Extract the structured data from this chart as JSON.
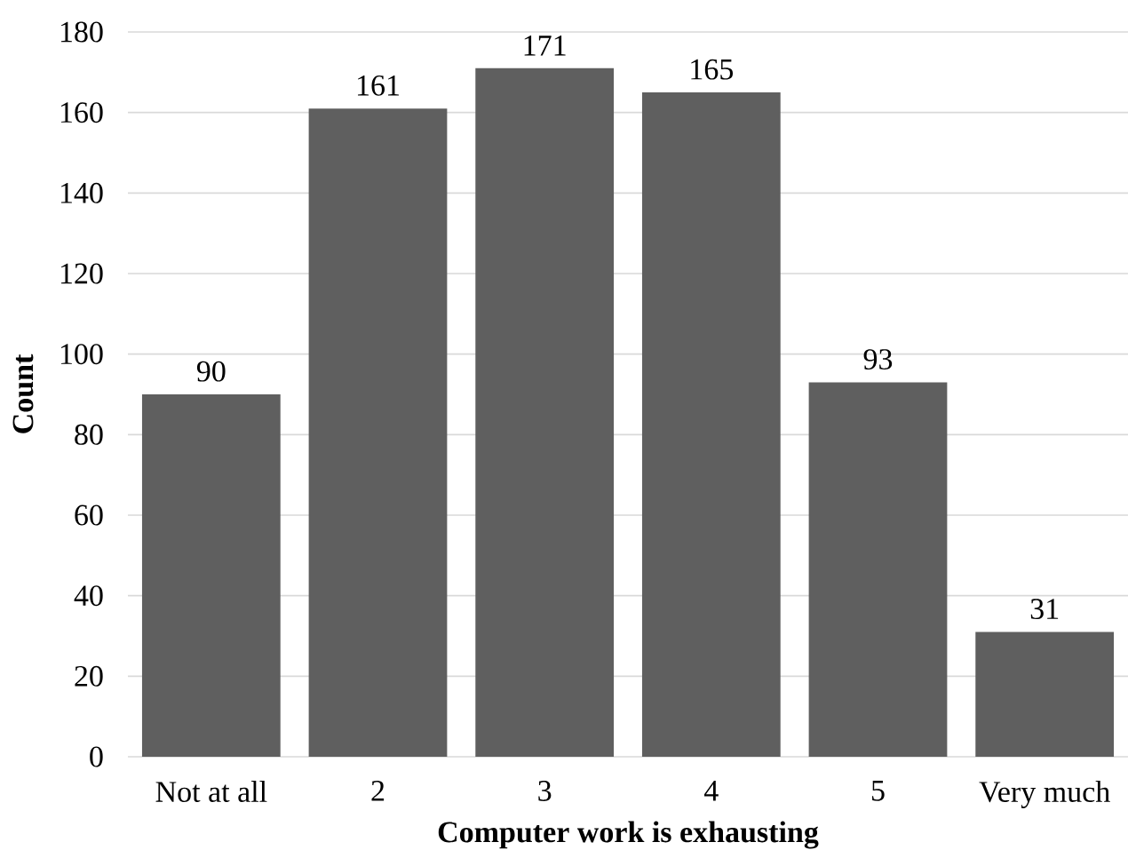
{
  "chart_data": {
    "type": "bar",
    "xlabel": "Computer work is exhausting",
    "ylabel": "Count",
    "categories": [
      "Not at all",
      "2",
      "3",
      "4",
      "5",
      "Very much"
    ],
    "values": [
      90,
      161,
      171,
      165,
      93,
      31
    ],
    "color": "#5f5f5f",
    "ylim": [
      0,
      180
    ],
    "yticks": [
      0,
      20,
      40,
      60,
      80,
      100,
      120,
      140,
      160,
      180
    ],
    "grid": "y",
    "data_labels": true
  }
}
